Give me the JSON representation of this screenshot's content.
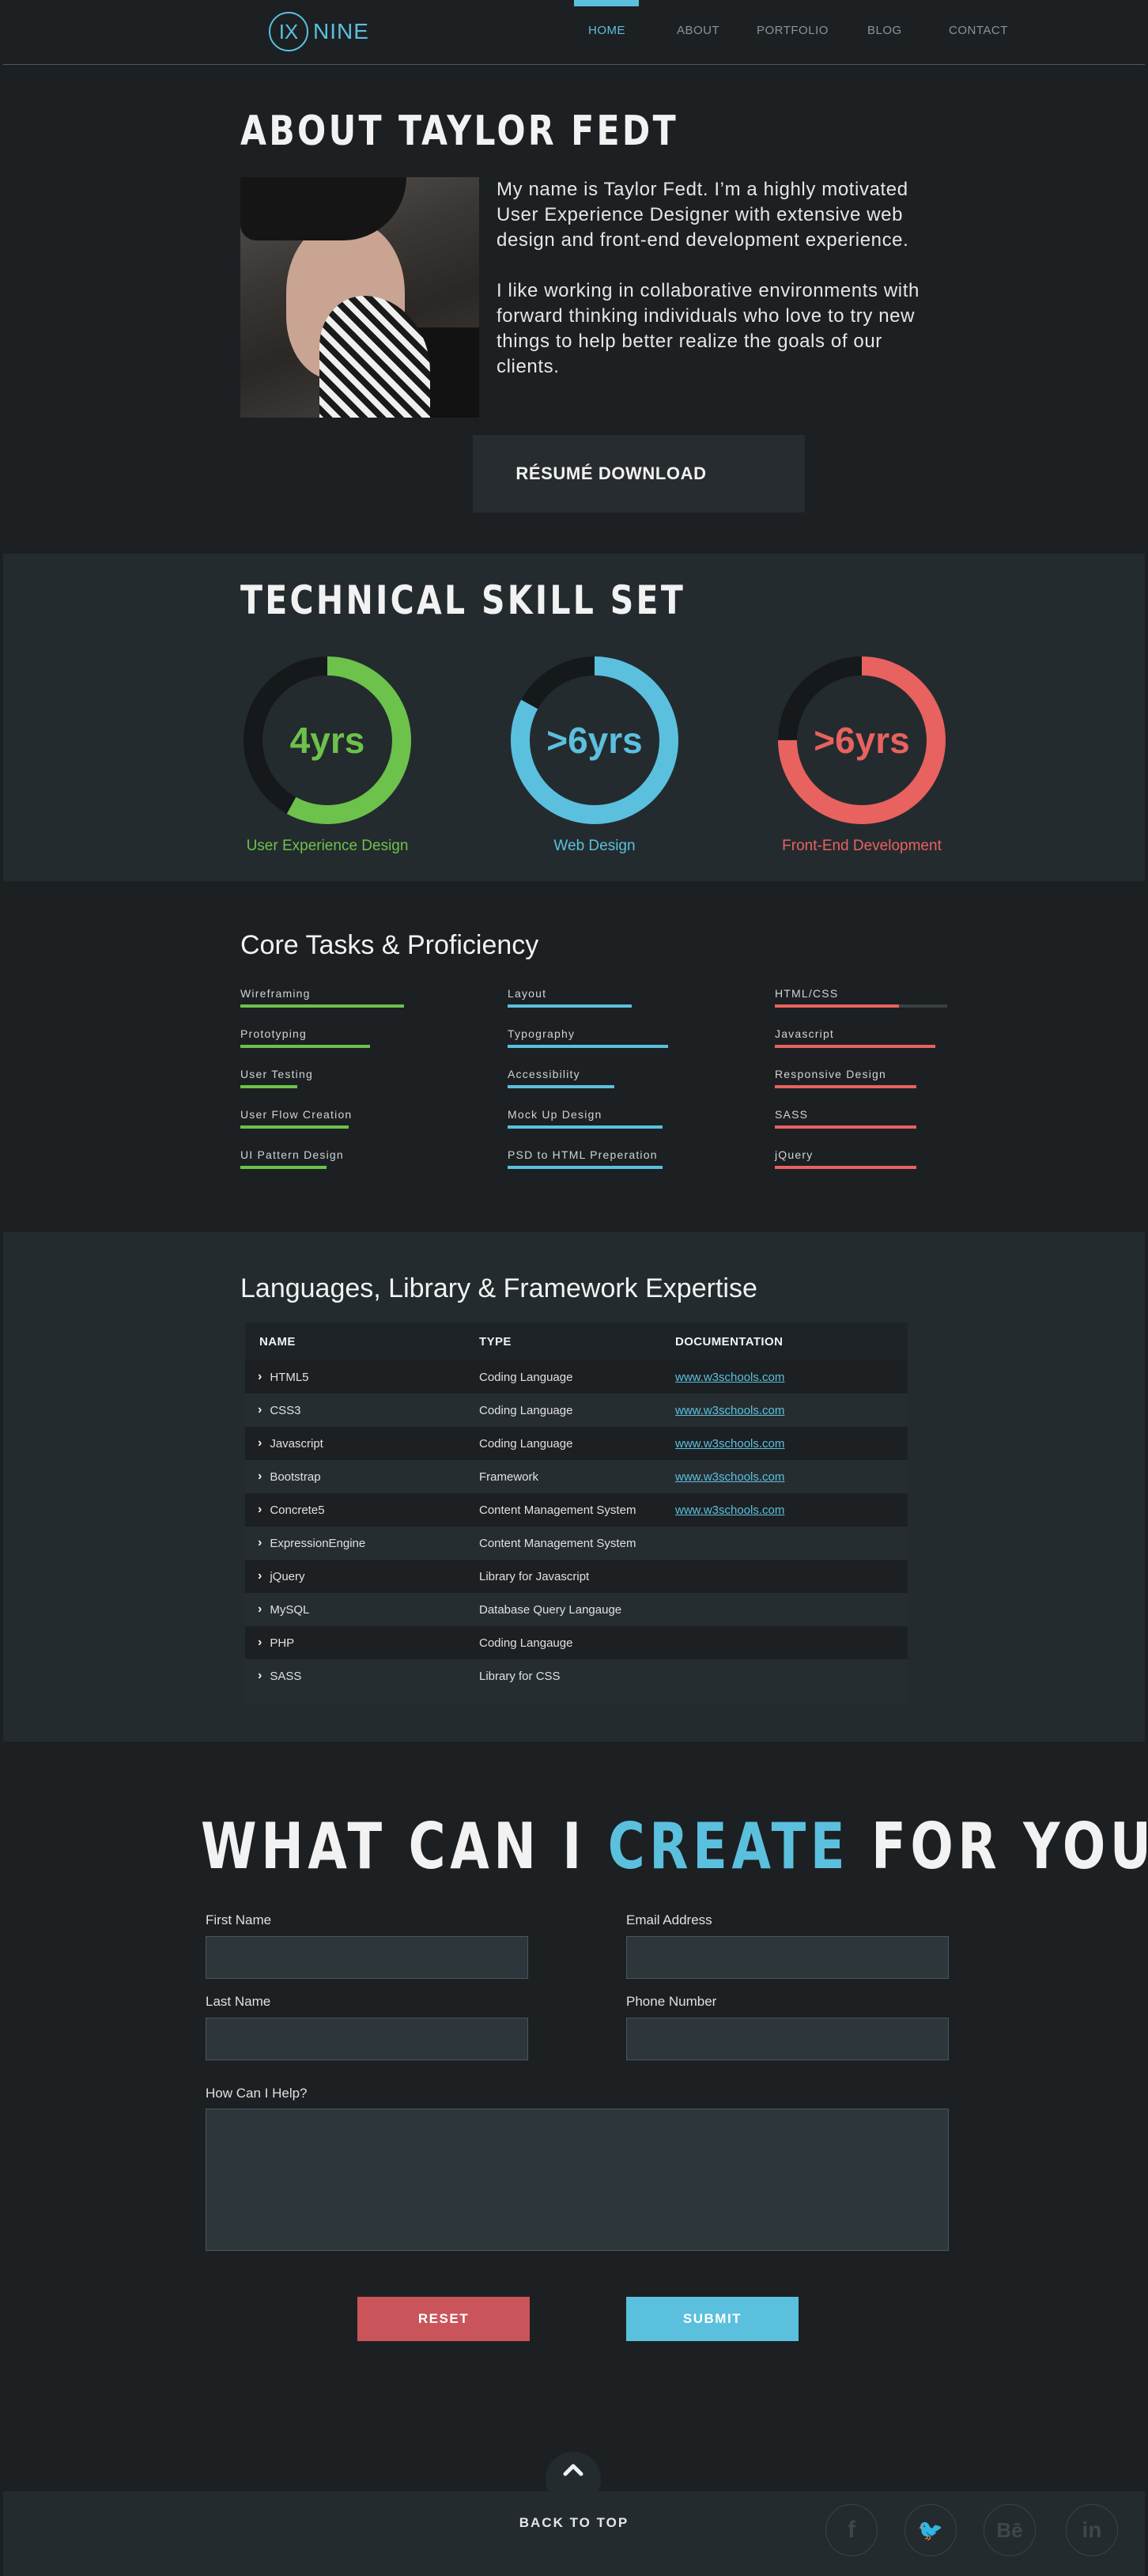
{
  "brand": {
    "mark": "IX",
    "name": "NINE"
  },
  "nav": {
    "items": [
      "HOME",
      "ABOUT",
      "PORTFOLIO",
      "BLOG",
      "CONTACT"
    ],
    "active": "HOME"
  },
  "about": {
    "title": "ABOUT TAYLOR FEDT",
    "para1": "My name is Taylor Fedt. I’m a highly motivated User Experience Designer with extensive web design and front-end development experience.",
    "para2": "I like working in collaborative environments with forward thinking individuals who love to try new things to help better realize the goals of our clients.",
    "resume_button": "RÉSUMÉ DOWNLOAD"
  },
  "skills": {
    "title": "TECHNICAL SKILL SET",
    "items": [
      {
        "value": "4yrs",
        "label": "User Experience Design",
        "color": "#6cc24a",
        "fraction": 0.58
      },
      {
        "value": ">6yrs",
        "label": "Web Design",
        "color": "#5bc0de",
        "fraction": 0.83
      },
      {
        "value": ">6yrs",
        "label": "Front-End Development",
        "color": "#e8625f",
        "fraction": 0.75
      }
    ]
  },
  "core": {
    "title": "Core Tasks & Proficiency",
    "columns": [
      {
        "color": "#6cc24a",
        "items": [
          {
            "label": "Wireframing",
            "level": 0.95
          },
          {
            "label": "Prototyping",
            "level": 0.75
          },
          {
            "label": "User Testing",
            "level": 0.33
          },
          {
            "label": "User Flow Creation",
            "level": 0.63
          },
          {
            "label": "UI Pattern Design",
            "level": 0.5
          }
        ]
      },
      {
        "color": "#5bc0de",
        "items": [
          {
            "label": "Layout",
            "level": 0.72
          },
          {
            "label": "Typography",
            "level": 0.93
          },
          {
            "label": "Accessibility",
            "level": 0.62
          },
          {
            "label": "Mock Up Design",
            "level": 0.9
          },
          {
            "label": "PSD to HTML Preperation",
            "level": 0.9
          }
        ]
      },
      {
        "color": "#e8625f",
        "items": [
          {
            "label": "HTML/CSS",
            "level": 0.72
          },
          {
            "label": "Javascript",
            "level": 0.93
          },
          {
            "label": "Responsive Design",
            "level": 0.82
          },
          {
            "label": "SASS",
            "level": 0.82
          },
          {
            "label": "jQuery",
            "level": 0.82
          }
        ]
      }
    ]
  },
  "languages": {
    "title": "Languages, Library & Framework Expertise",
    "headers": [
      "NAME",
      "TYPE",
      "DOCUMENTATION"
    ],
    "rows": [
      {
        "name": "HTML5",
        "type": "Coding Language",
        "doc": "www.w3schools.com"
      },
      {
        "name": "CSS3",
        "type": "Coding Language",
        "doc": "www.w3schools.com"
      },
      {
        "name": "Javascript",
        "type": "Coding Language",
        "doc": "www.w3schools.com"
      },
      {
        "name": "Bootstrap",
        "type": "Framework",
        "doc": "www.w3schools.com"
      },
      {
        "name": "Concrete5",
        "type": "Content Management System",
        "doc": "www.w3schools.com"
      },
      {
        "name": "ExpressionEngine",
        "type": "Content Management System",
        "doc": ""
      },
      {
        "name": "jQuery",
        "type": "Library for Javascript",
        "doc": ""
      },
      {
        "name": "MySQL",
        "type": "Database Query Langauge",
        "doc": ""
      },
      {
        "name": "PHP",
        "type": "Coding Langauge",
        "doc": ""
      },
      {
        "name": "SASS",
        "type": "Library for CSS",
        "doc": ""
      }
    ]
  },
  "contact": {
    "heading_before": "WHAT CAN I ",
    "heading_highlight": "CREATE",
    "heading_after": " FOR YOU?",
    "first_name_label": "First Name",
    "email_label": "Email Address",
    "last_name_label": "Last Name",
    "phone_label": "Phone Number",
    "help_label": "How Can I Help?",
    "first_name_value": "",
    "email_value": "",
    "last_name_value": "",
    "phone_value": "",
    "help_value": "",
    "reset": "RESET",
    "submit": "SUBMIT"
  },
  "footer": {
    "back_to_top": "BACK TO TOP",
    "social": [
      {
        "icon": "facebook-icon",
        "glyph": "f"
      },
      {
        "icon": "twitter-icon",
        "glyph": "🐦"
      },
      {
        "icon": "behance-icon",
        "glyph": "Bē"
      },
      {
        "icon": "linkedin-icon",
        "glyph": "in"
      }
    ]
  },
  "colors": {
    "accent": "#5bc0de",
    "green": "#6cc24a",
    "red": "#e8625f",
    "background": "#1c2023",
    "panel": "#242b2f"
  }
}
